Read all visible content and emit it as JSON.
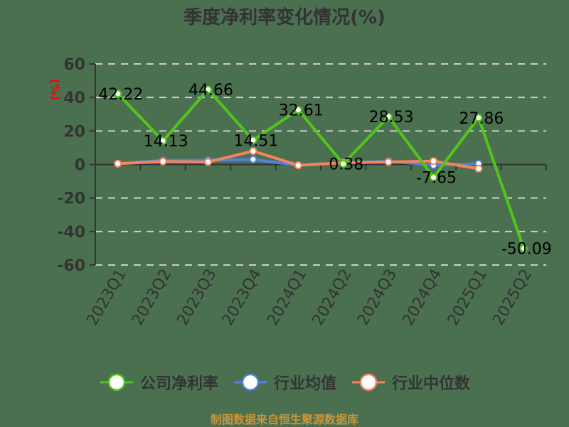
{
  "title": "季度净利率变化情况(%)",
  "footer": "制图数据来自恒生聚源数据库",
  "colors": {
    "background": "#4b7050",
    "company": "#52c41a",
    "industry_avg": "#4f81d9",
    "industry_median": "#f4845f",
    "axis": "#333333",
    "grid": "#cccccc",
    "unit_label": "#ff0000",
    "footer": "#c8963c"
  },
  "legend": [
    {
      "label": "公司净利率",
      "color": "#52c41a"
    },
    {
      "label": "行业均值",
      "color": "#4f81d9"
    },
    {
      "label": "行业中位数",
      "color": "#f4845f"
    }
  ],
  "chart_data": {
    "type": "line",
    "title": "季度净利率变化情况(%)",
    "xlabel": "",
    "ylabel": "(%)",
    "ylim": [
      -60,
      60
    ],
    "yticks": [
      60,
      40,
      20,
      0,
      -20,
      -40,
      -60
    ],
    "grid": true,
    "legend_position": "bottom",
    "categories": [
      "2023Q1",
      "2023Q2",
      "2023Q3",
      "2023Q4",
      "2024Q1",
      "2024Q2",
      "2024Q3",
      "2024Q4",
      "2025Q1",
      "2025Q2"
    ],
    "series": [
      {
        "name": "公司净利率",
        "values": [
          42.22,
          14.13,
          44.66,
          14.51,
          32.61,
          0.38,
          28.53,
          -7.65,
          27.86,
          -50.09
        ],
        "labels": [
          "42.22",
          "14.13",
          "44.66",
          "14.51",
          "32.61",
          "0.38",
          "28.53",
          "-7.65",
          "27.86",
          "-50.09"
        ]
      },
      {
        "name": "行业均值",
        "values": [
          0.5,
          2.5,
          2.5,
          3.0,
          -0.5,
          1.0,
          2.0,
          -0.5,
          0.5,
          null
        ]
      },
      {
        "name": "行业中位数",
        "values": [
          0.5,
          1.8,
          1.5,
          8.0,
          -0.5,
          1.0,
          1.5,
          2.0,
          -2.5,
          null
        ]
      }
    ]
  }
}
